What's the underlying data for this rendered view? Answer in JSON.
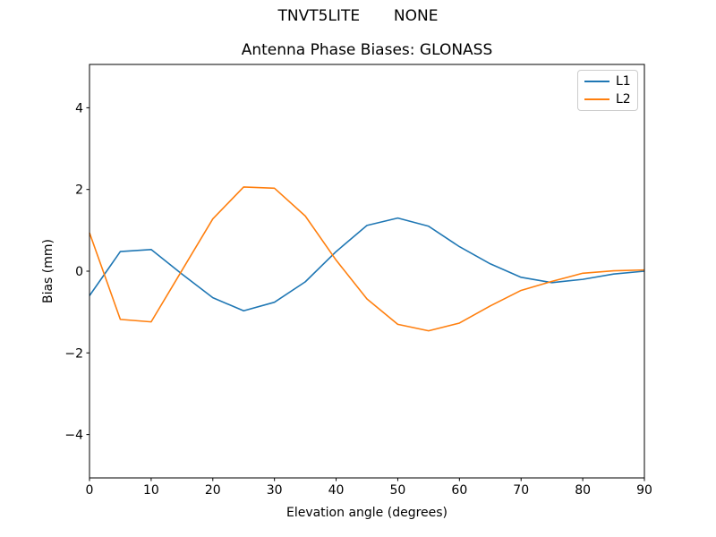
{
  "figure": {
    "suptitle": "TNVT5LITE       NONE"
  },
  "chart_data": {
    "type": "line",
    "title": "Antenna Phase Biases: GLONASS",
    "xlabel": "Elevation angle (degrees)",
    "ylabel": "Bias (mm)",
    "xlim": [
      0,
      90
    ],
    "ylim": [
      -5.06,
      5.06
    ],
    "xticks": [
      0,
      10,
      20,
      30,
      40,
      50,
      60,
      70,
      80,
      90
    ],
    "yticks": [
      -4,
      -2,
      0,
      2,
      4
    ],
    "grid": false,
    "legend_position": "upper right",
    "x": [
      0,
      5,
      10,
      15,
      20,
      25,
      30,
      35,
      40,
      45,
      50,
      55,
      60,
      65,
      70,
      75,
      80,
      85,
      90
    ],
    "series": [
      {
        "name": "L1",
        "color": "#1f77b4",
        "values": [
          -0.6,
          0.48,
          0.53,
          -0.07,
          -0.65,
          -0.97,
          -0.76,
          -0.26,
          0.48,
          1.12,
          1.3,
          1.1,
          0.6,
          0.18,
          -0.15,
          -0.28,
          -0.2,
          -0.07,
          0.0
        ]
      },
      {
        "name": "L2",
        "color": "#ff7f0e",
        "values": [
          0.94,
          -1.18,
          -1.24,
          0.02,
          1.28,
          2.06,
          2.03,
          1.35,
          0.27,
          -0.68,
          -1.3,
          -1.46,
          -1.27,
          -0.85,
          -0.47,
          -0.25,
          -0.05,
          0.01,
          0.03
        ]
      }
    ]
  }
}
